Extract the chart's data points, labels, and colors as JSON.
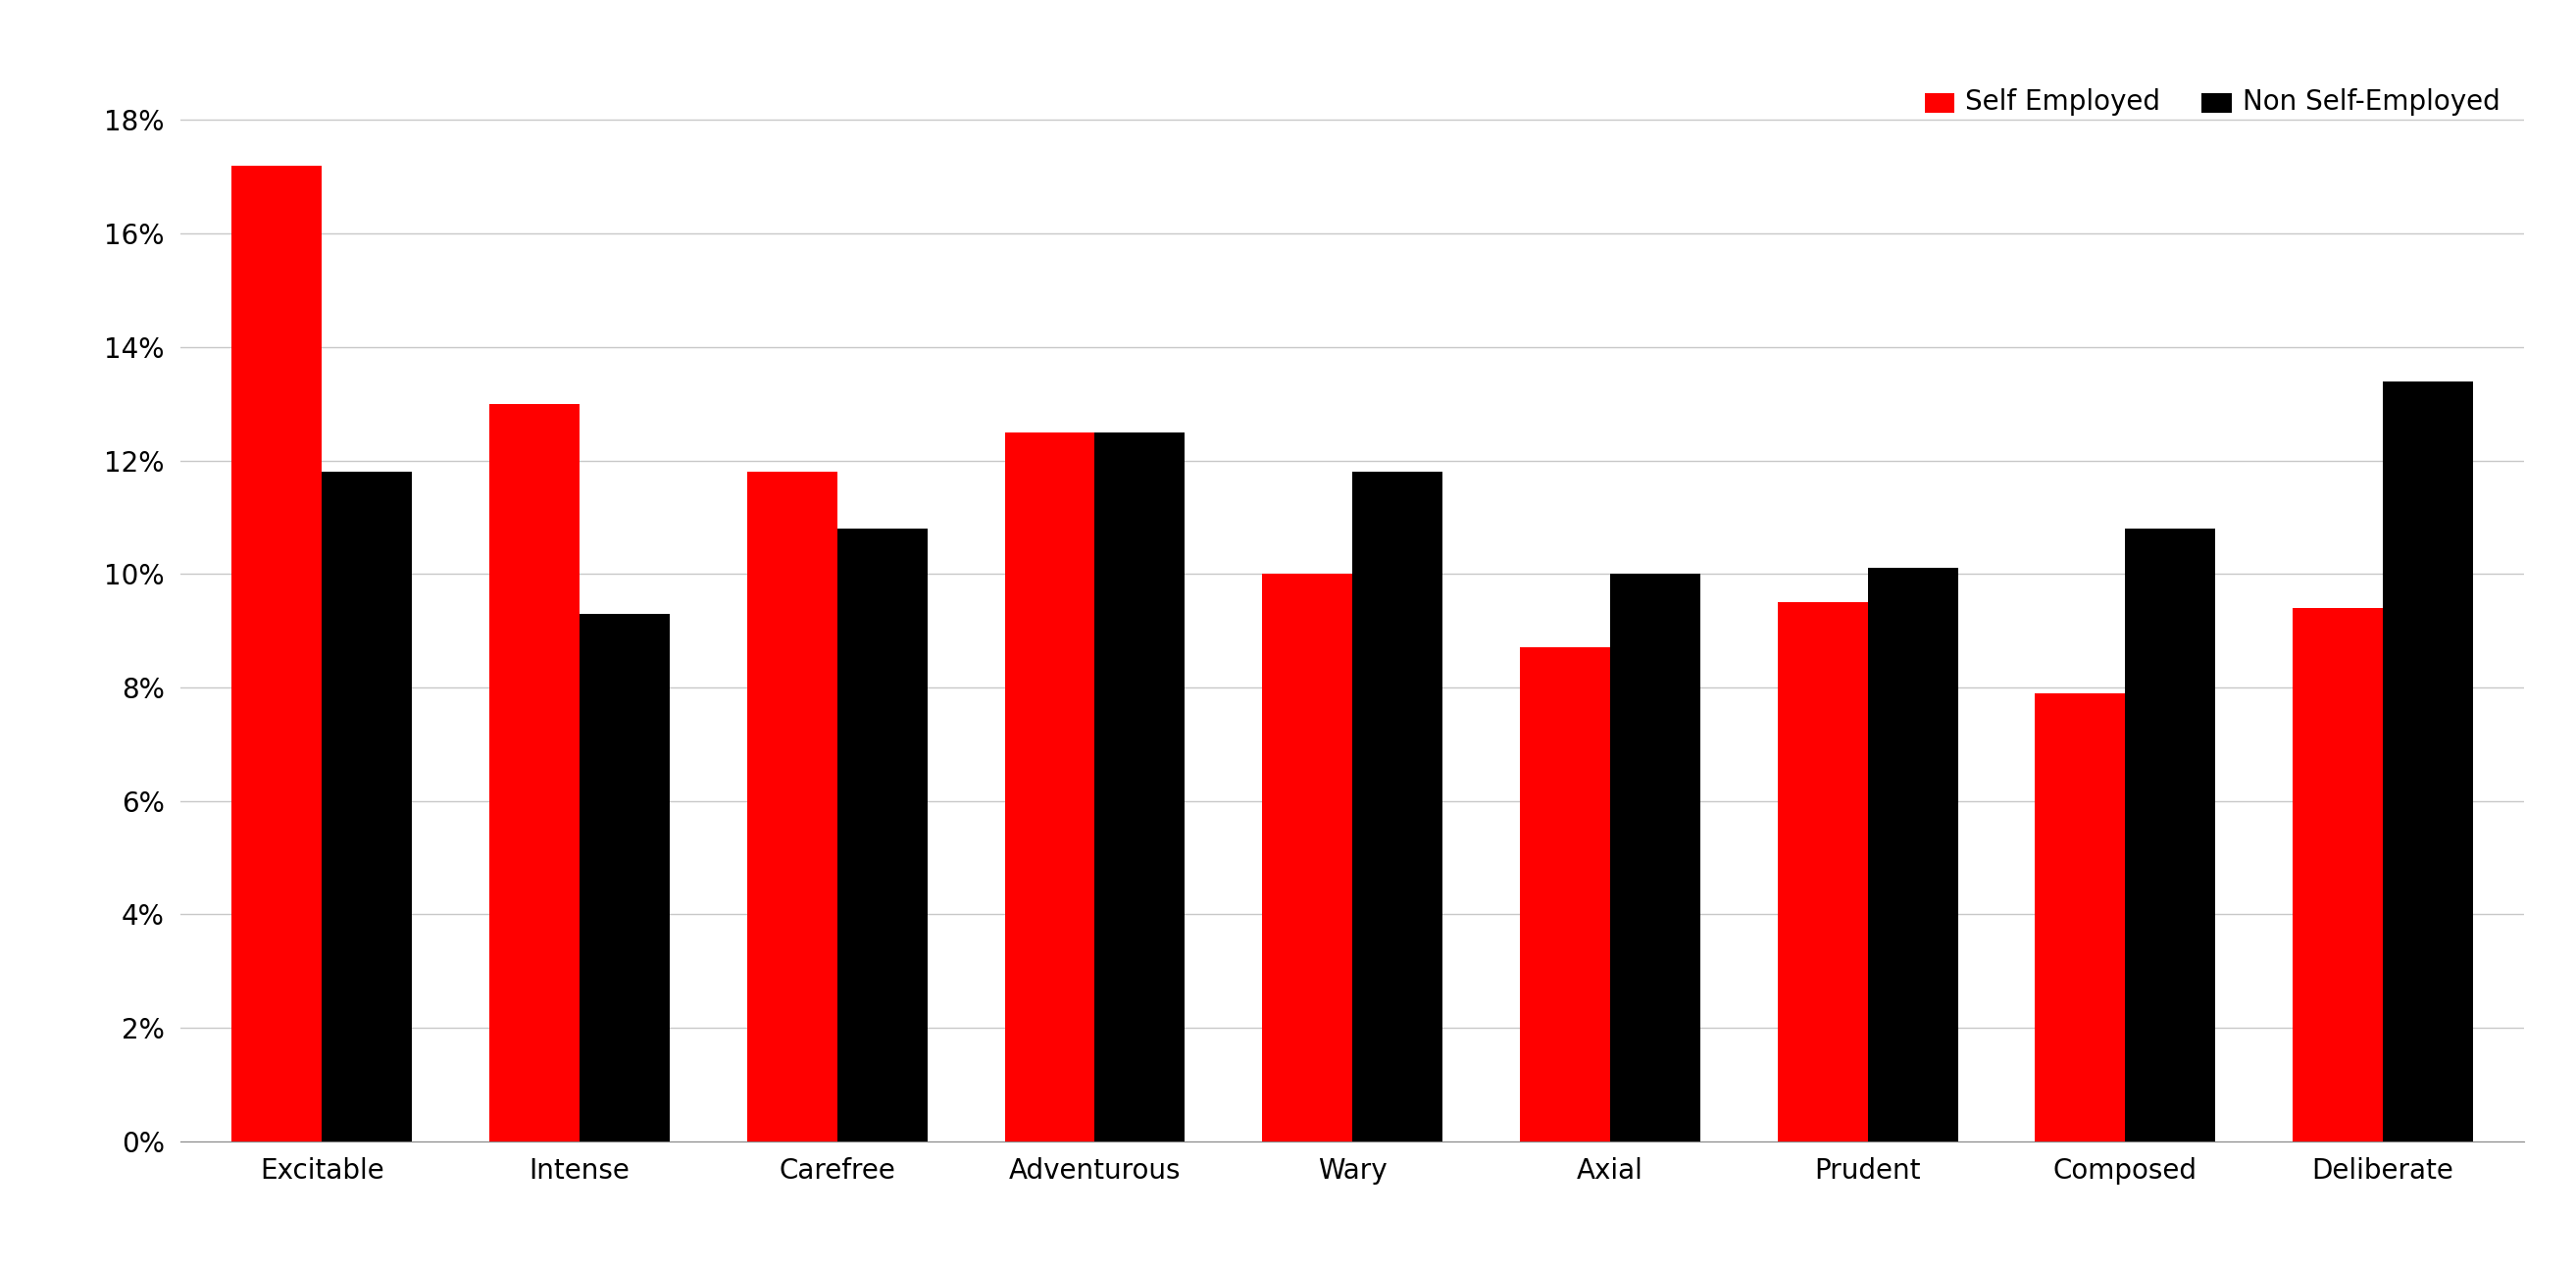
{
  "categories": [
    "Excitable",
    "Intense",
    "Carefree",
    "Adventurous",
    "Wary",
    "Axial",
    "Prudent",
    "Composed",
    "Deliberate"
  ],
  "self_employed": [
    0.172,
    0.13,
    0.118,
    0.125,
    0.1,
    0.087,
    0.095,
    0.079,
    0.094
  ],
  "non_self_employed": [
    0.118,
    0.093,
    0.108,
    0.125,
    0.118,
    0.1,
    0.101,
    0.108,
    0.134
  ],
  "self_color": "#FF0000",
  "non_self_color": "#000000",
  "legend_labels": [
    "Self Employed",
    "Non Self-Employed"
  ],
  "ylim": [
    0,
    0.19
  ],
  "ytick_vals": [
    0,
    0.02,
    0.04,
    0.06,
    0.08,
    0.1,
    0.12,
    0.14,
    0.16,
    0.18
  ],
  "bar_width": 0.35,
  "background_color": "#FFFFFF",
  "grid_color": "#C8C8C8",
  "axis_fontsize": 20,
  "legend_fontsize": 20,
  "tick_fontsize": 20
}
